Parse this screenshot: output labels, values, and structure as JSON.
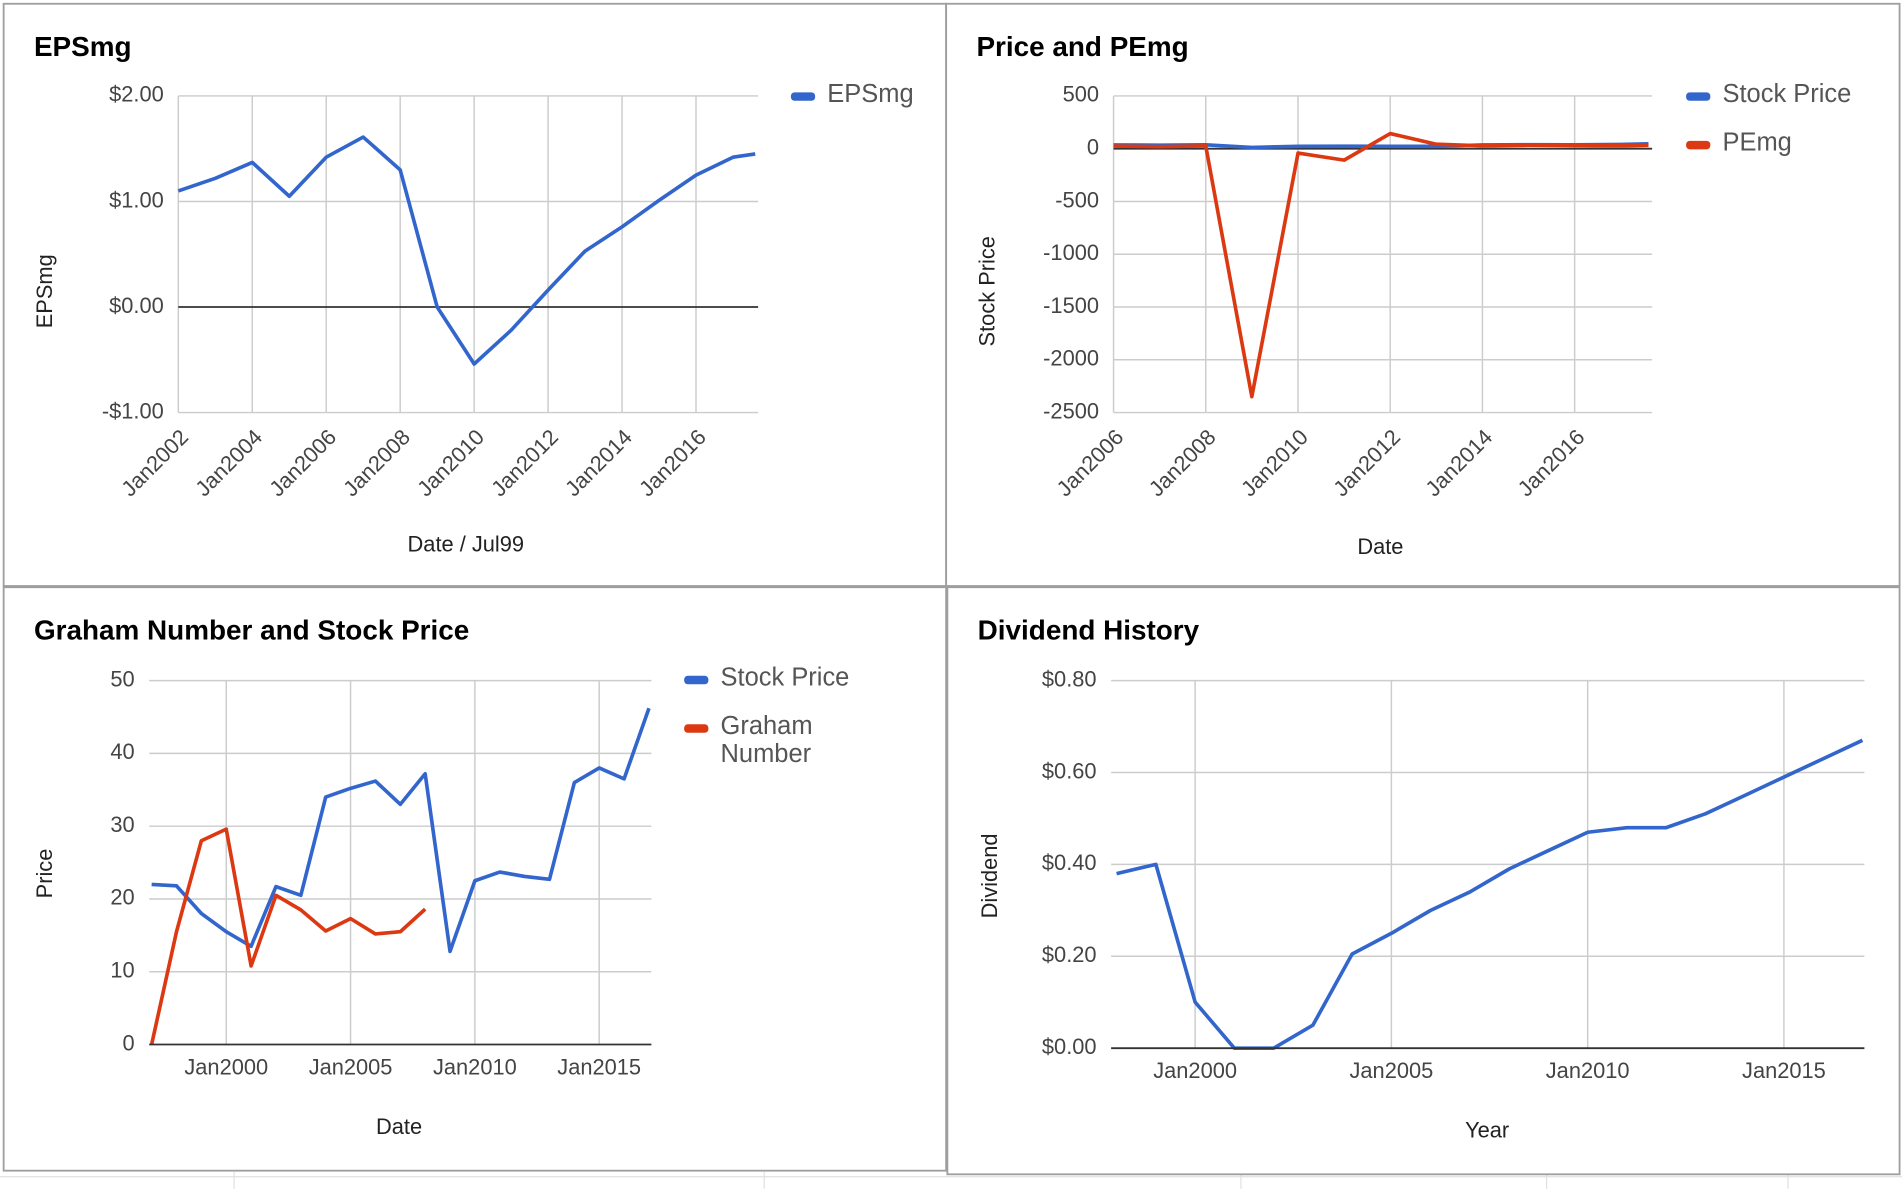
{
  "chart_data": [
    {
      "type": "line",
      "title": "EPSmg",
      "x_label": "Date / Jul99",
      "y_label": "EPSmg",
      "legend": "right",
      "x": [
        2002,
        2003,
        2004,
        2005,
        2006,
        2007,
        2008,
        2009,
        2010,
        2011,
        2012,
        2013,
        2014,
        2015,
        2016,
        2017,
        2017.6
      ],
      "series": [
        {
          "name": "EPSmg",
          "color": "#3366cc",
          "values": [
            1.1,
            1.22,
            1.37,
            1.05,
            1.42,
            1.61,
            1.3,
            0.0,
            -0.54,
            -0.22,
            0.16,
            0.53,
            0.76,
            1.01,
            1.25,
            1.42,
            1.45
          ]
        }
      ],
      "xlim": [
        2002,
        2017.68
      ],
      "xticks": [
        {
          "value": 2002,
          "label": "Jan2002"
        },
        {
          "value": 2004,
          "label": "Jan2004"
        },
        {
          "value": 2006,
          "label": "Jan2006"
        },
        {
          "value": 2008,
          "label": "Jan2008"
        },
        {
          "value": 2010,
          "label": "Jan2010"
        },
        {
          "value": 2012,
          "label": "Jan2012"
        },
        {
          "value": 2014,
          "label": "Jan2014"
        },
        {
          "value": 2016,
          "label": "Jan2016"
        }
      ],
      "ylim": [
        -1,
        2
      ],
      "yticks": [
        {
          "value": -1,
          "label": "-$1.00"
        },
        {
          "value": 0,
          "label": "$0.00"
        },
        {
          "value": 1,
          "label": "$1.00"
        },
        {
          "value": 2,
          "label": "$2.00"
        }
      ],
      "grid": true
    },
    {
      "type": "line",
      "title": "Price and PEmg",
      "x_label": "Date",
      "y_label": "Stock Price",
      "legend": "right",
      "x": [
        2006,
        2007,
        2008,
        2009,
        2010,
        2011,
        2012,
        2013,
        2014,
        2015,
        2016,
        2017,
        2017.6
      ],
      "series": [
        {
          "name": "Stock Price",
          "color": "#3366cc",
          "values": [
            36,
            33,
            37,
            13,
            22.5,
            23.7,
            23.1,
            22.7,
            36,
            38,
            36.5,
            40,
            46
          ]
        },
        {
          "name": "PEmg",
          "color": "#dc3912",
          "values": [
            25,
            20,
            28,
            -2350,
            -41,
            -108,
            144,
            42,
            28,
            33,
            30,
            28,
            32
          ]
        }
      ],
      "xlim": [
        2006,
        2017.68
      ],
      "xticks": [
        {
          "value": 2006,
          "label": "Jan2006"
        },
        {
          "value": 2008,
          "label": "Jan2008"
        },
        {
          "value": 2010,
          "label": "Jan2010"
        },
        {
          "value": 2012,
          "label": "Jan2012"
        },
        {
          "value": 2014,
          "label": "Jan2014"
        },
        {
          "value": 2016,
          "label": "Jan2016"
        }
      ],
      "ylim": [
        -2500,
        500
      ],
      "yticks": [
        -2500,
        -2000,
        -1500,
        -1000,
        -500,
        0,
        500
      ],
      "grid": true
    },
    {
      "type": "line",
      "title": "Graham Number and Stock Price",
      "x_label": "Date",
      "y_label": "Price",
      "legend": "right",
      "x": [
        1997,
        1998,
        1999,
        2000,
        2001,
        2002,
        2003,
        2004,
        2005,
        2006,
        2007,
        2008,
        2009,
        2010,
        2011,
        2012,
        2013,
        2014,
        2015,
        2016,
        2017
      ],
      "series": [
        {
          "name": "Stock Price",
          "color": "#3366cc",
          "values": [
            22,
            21.8,
            18,
            15.5,
            13.5,
            21.7,
            20.5,
            34,
            35.2,
            36.2,
            33,
            37.2,
            12.8,
            22.5,
            23.7,
            23.1,
            22.7,
            36,
            38,
            36.5,
            46.2
          ]
        },
        {
          "name": "Graham Number",
          "color": "#dc3912",
          "values": [
            0,
            15.5,
            28,
            29.6,
            10.8,
            20.5,
            18.5,
            15.6,
            17.3,
            15.2,
            15.5,
            18.6,
            null,
            null,
            null,
            null,
            null,
            null,
            null,
            null,
            null
          ]
        }
      ],
      "xlim": [
        1996.9,
        2017.1
      ],
      "xticks": [
        {
          "value": 2000,
          "label": "Jan2000"
        },
        {
          "value": 2005,
          "label": "Jan2005"
        },
        {
          "value": 2010,
          "label": "Jan2010"
        },
        {
          "value": 2015,
          "label": "Jan2015"
        }
      ],
      "ylim": [
        0,
        50
      ],
      "yticks": [
        0,
        10,
        20,
        30,
        40,
        50
      ],
      "grid": true
    },
    {
      "type": "line",
      "title": "Dividend History",
      "x_label": "Year",
      "y_label": "Dividend",
      "legend": "none",
      "x": [
        1998,
        1999,
        2000,
        2001,
        2002,
        2003,
        2004,
        2005,
        2006,
        2007,
        2008,
        2009,
        2010,
        2011,
        2012,
        2013,
        2014,
        2015,
        2016,
        2017
      ],
      "series": [
        {
          "name": "Dividend",
          "color": "#3366cc",
          "values": [
            0.38,
            0.4,
            0.1,
            0.0,
            0.0,
            0.05,
            0.205,
            0.25,
            0.3,
            0.34,
            0.39,
            0.43,
            0.47,
            0.48,
            0.48,
            0.51,
            0.55,
            0.59,
            0.63,
            0.67
          ]
        }
      ],
      "xlim": [
        1997.86,
        2017.05
      ],
      "xticks": [
        {
          "value": 2000,
          "label": "Jan2000"
        },
        {
          "value": 2005,
          "label": "Jan2005"
        },
        {
          "value": 2010,
          "label": "Jan2010"
        },
        {
          "value": 2015,
          "label": "Jan2015"
        }
      ],
      "ylim": [
        0,
        0.8
      ],
      "yticks": [
        {
          "value": 0,
          "label": "$0.00"
        },
        {
          "value": 0.2,
          "label": "$0.20"
        },
        {
          "value": 0.4,
          "label": "$0.40"
        },
        {
          "value": 0.6,
          "label": "$0.60"
        },
        {
          "value": 0.8,
          "label": "$0.80"
        }
      ],
      "grid": true
    }
  ]
}
